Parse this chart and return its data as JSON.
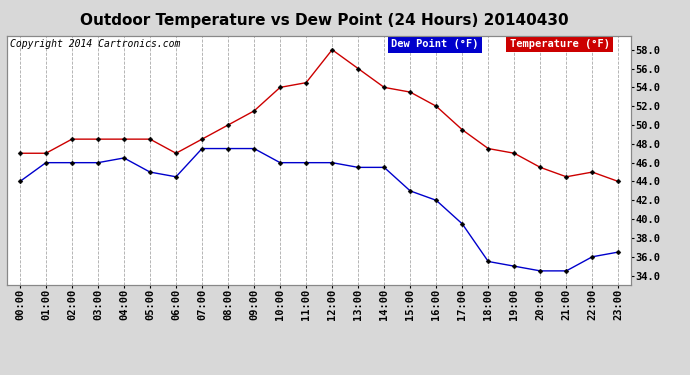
{
  "title": "Outdoor Temperature vs Dew Point (24 Hours) 20140430",
  "copyright": "Copyright 2014 Cartronics.com",
  "legend_dew": "Dew Point (°F)",
  "legend_temp": "Temperature (°F)",
  "hours": [
    "00:00",
    "01:00",
    "02:00",
    "03:00",
    "04:00",
    "05:00",
    "06:00",
    "07:00",
    "08:00",
    "09:00",
    "10:00",
    "11:00",
    "12:00",
    "13:00",
    "14:00",
    "15:00",
    "16:00",
    "17:00",
    "18:00",
    "19:00",
    "20:00",
    "21:00",
    "22:00",
    "23:00"
  ],
  "temperature": [
    47.0,
    47.0,
    48.5,
    48.5,
    48.5,
    48.5,
    47.0,
    48.5,
    50.0,
    51.5,
    54.0,
    54.5,
    58.0,
    56.0,
    54.0,
    53.5,
    52.0,
    49.5,
    47.5,
    47.0,
    45.5,
    44.5,
    45.0,
    44.0
  ],
  "dew_point": [
    44.0,
    46.0,
    46.0,
    46.0,
    46.5,
    45.0,
    44.5,
    47.5,
    47.5,
    47.5,
    46.0,
    46.0,
    46.0,
    45.5,
    45.5,
    43.0,
    42.0,
    39.5,
    35.5,
    35.0,
    34.5,
    34.5,
    36.0,
    36.5
  ],
  "ylim": [
    33.0,
    59.5
  ],
  "yticks": [
    34.0,
    36.0,
    38.0,
    40.0,
    42.0,
    44.0,
    46.0,
    48.0,
    50.0,
    52.0,
    54.0,
    56.0,
    58.0
  ],
  "temp_color": "#cc0000",
  "dew_color": "#0000cc",
  "background_color": "#d8d8d8",
  "plot_bg_color": "#ffffff",
  "grid_color": "#aaaaaa",
  "title_fontsize": 11,
  "tick_fontsize": 7.5,
  "copyright_fontsize": 7
}
